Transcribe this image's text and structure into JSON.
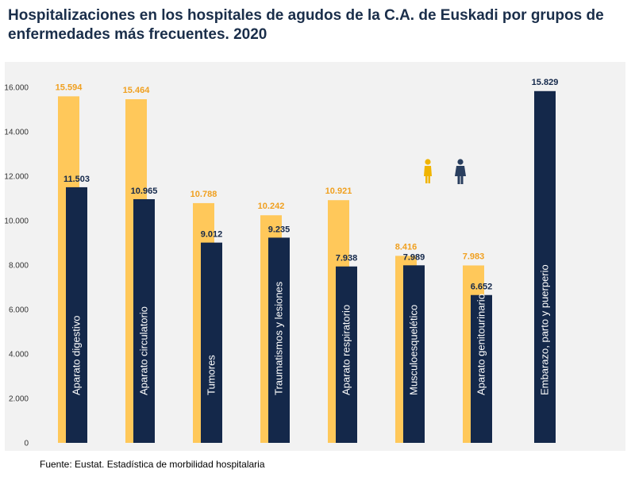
{
  "title": "Hospitalizaciones en los hospitales de agudos de la C.A. de Euskadi por grupos de enfermedades más frecuentes. 2020",
  "source": "Fuente: Eustat. Estadística de morbilidad hospitalaria",
  "colors": {
    "mujeres": "#ffc85a",
    "hombres": "#14284a",
    "mujeres_label": "#f0a020",
    "hombres_label": "#14284a",
    "plot_bg": "#f2f2f2"
  },
  "chart_data": {
    "type": "bar",
    "ylim": [
      0,
      16000
    ],
    "yticks": [
      0,
      2000,
      4000,
      6000,
      8000,
      10000,
      12000,
      14000,
      16000
    ],
    "ytick_labels": [
      "0",
      "2.000",
      "4.000",
      "6.000",
      "8.000",
      "10.000",
      "12.000",
      "14.000",
      "16.000"
    ],
    "categories": [
      "Aparato digestivo",
      "Aparato circulatorio",
      "Tumores",
      "Traumatismos y lesiones",
      "Aparato respiratorio",
      "Musculoesquelético",
      "Aparato  genitourinario",
      "Embarazo, parto y puerperio"
    ],
    "series": [
      {
        "key": "mujeres",
        "icon": "female-icon",
        "values": [
          15594,
          15464,
          10788,
          10242,
          10921,
          8416,
          7983,
          15829
        ],
        "labels": [
          "15.594",
          "15.464",
          "10.788",
          "10.242",
          "10.921",
          "8.416",
          "7.983",
          "15.829"
        ]
      },
      {
        "key": "hombres",
        "icon": "male-icon",
        "values": [
          11503,
          10965,
          9012,
          9235,
          7938,
          7989,
          6652,
          null
        ],
        "labels": [
          "11.503",
          "10.965",
          "9.012",
          "9.235",
          "7.938",
          "7.989",
          "6.652",
          ""
        ]
      }
    ]
  }
}
